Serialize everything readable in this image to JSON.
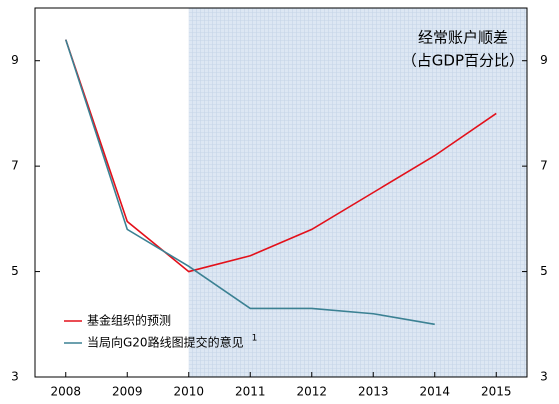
{
  "chart_data": {
    "type": "line",
    "title": "经常账户顺差",
    "subtitle": "（占GDP百分比）",
    "x": [
      2008,
      2009,
      2010,
      2011,
      2012,
      2013,
      2014,
      2015
    ],
    "xlim": [
      2007.5,
      2015.5
    ],
    "xticks": [
      2008,
      2009,
      2010,
      2011,
      2012,
      2013,
      2014,
      2015
    ],
    "ylim": [
      3,
      10
    ],
    "yticks": [
      3,
      5,
      7,
      9
    ],
    "shaded_from": 2010,
    "legend": "lower left",
    "note_marker": "1",
    "series": [
      {
        "name": "基金组织的预测",
        "color": "#e3101a",
        "values": [
          9.4,
          5.95,
          5.0,
          5.3,
          5.8,
          6.5,
          7.2,
          8.0
        ]
      },
      {
        "name": "当局向G20路线图提交的意见",
        "color": "#3b8193",
        "values": [
          9.4,
          5.8,
          5.1,
          4.3,
          4.3,
          4.2,
          4.0,
          null
        ]
      }
    ]
  }
}
